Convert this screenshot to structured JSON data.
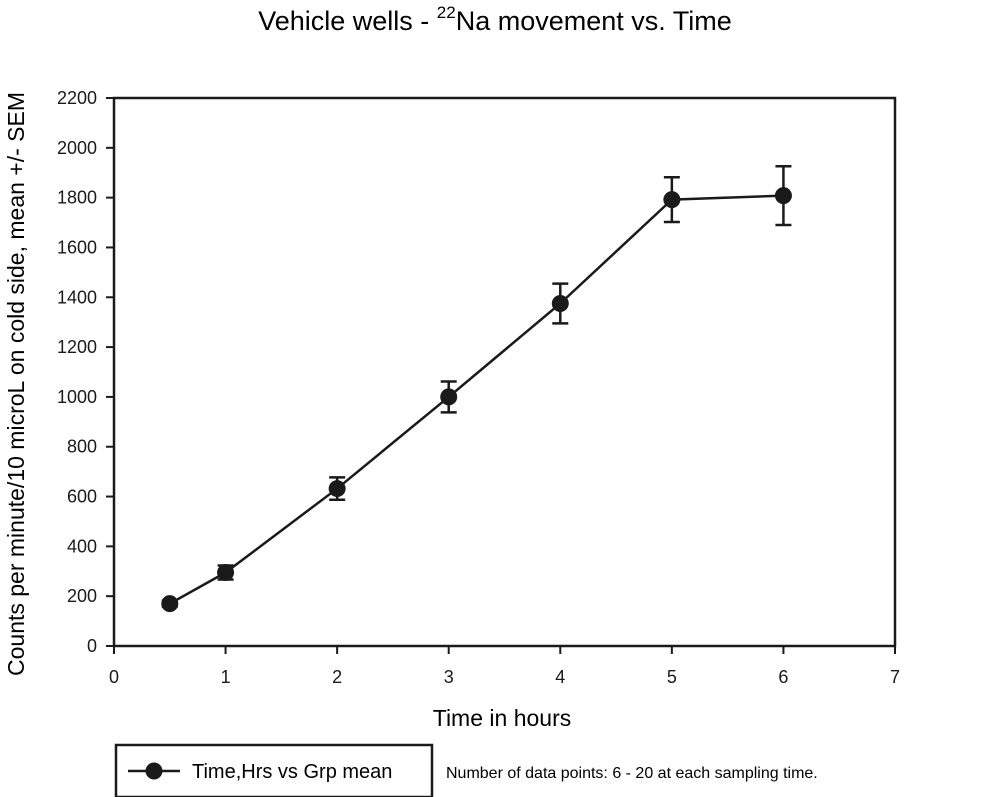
{
  "chart_data": {
    "type": "line",
    "title_main": "Vehicle wells - ",
    "title_superscript": "22",
    "title_rest": "Na movement vs. Time",
    "xlabel": "Time in hours",
    "ylabel": "Counts per minute/10 microL on cold side, mean +/- SEM",
    "xlim": [
      0,
      7
    ],
    "ylim": [
      0,
      2200
    ],
    "xticks": [
      0,
      1,
      2,
      3,
      4,
      5,
      6,
      7
    ],
    "yticks": [
      0,
      200,
      400,
      600,
      800,
      1000,
      1200,
      1400,
      1600,
      1800,
      2000,
      2200
    ],
    "series": [
      {
        "name": "Time,Hrs vs Grp mean",
        "x": [
          0.5,
          1,
          2,
          3,
          4,
          5,
          6
        ],
        "y": [
          170,
          295,
          632,
          1000,
          1375,
          1792,
          1808
        ],
        "err": [
          12,
          28,
          45,
          62,
          80,
          90,
          118
        ]
      }
    ],
    "note": "Number of data points: 6 - 20 at each sampling time.",
    "colors": {
      "line": "#1a1a1a",
      "marker": "#1a1a1a",
      "background": "#ffffff"
    }
  }
}
